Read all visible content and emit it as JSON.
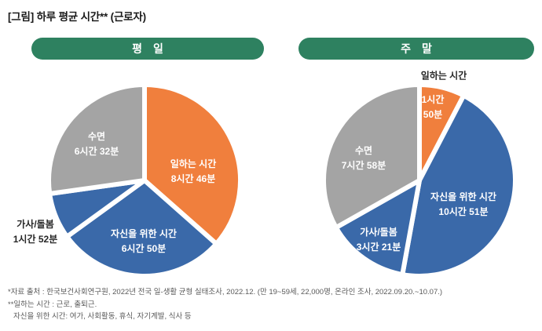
{
  "title": "[그림] 하루 평균 시간** (근로자)",
  "colors": {
    "header_green": "#2E8160",
    "work_orange": "#F07F3D",
    "time_blue": "#3A69A9",
    "sleep_gray": "#A4A4A4",
    "outside_label": "#262626",
    "footnote_gray": "#595959"
  },
  "chart_data": [
    {
      "type": "pie",
      "title": "평 일",
      "categories": [
        "일하는 시간",
        "자신을 위한 시간",
        "가사/돌봄",
        "수면"
      ],
      "keys": [
        "work-time",
        "personal-time",
        "housework-care",
        "sleep"
      ],
      "values_minutes": [
        526,
        410,
        112,
        392
      ],
      "value_labels": [
        "8시간 46분",
        "6시간 50분",
        "1시간 52분",
        "6시간 32분"
      ],
      "slice_colors": [
        "#F07F3D",
        "#3A69A9",
        "#3A69A9",
        "#A4A4A4"
      ],
      "start_angle": "top",
      "direction": "clockwise",
      "legend": "none"
    },
    {
      "type": "pie",
      "title": "주 말",
      "categories": [
        "일하는 시간",
        "자신을 위한 시간",
        "가사/돌봄",
        "수면"
      ],
      "keys": [
        "work-time",
        "personal-time",
        "housework-care",
        "sleep"
      ],
      "values_minutes": [
        110,
        651,
        201,
        478
      ],
      "value_labels": [
        "1시간 50분",
        "10시간 51분",
        "3시간 21분",
        "7시간 58분"
      ],
      "slice_colors": [
        "#F07F3D",
        "#3A69A9",
        "#3A69A9",
        "#A4A4A4"
      ],
      "start_angle": "top",
      "direction": "clockwise",
      "legend": "none"
    }
  ],
  "footnotes": [
    "*자료 출처 : 한국보건사회연구원, 2022년 전국 일-생활 균형 실태조사, 2022.12. (만 19~59세, 22,000명, 온라인 조사, 2022.09.20.~10.07.)",
    "**일하는 시간 : 근로, 출퇴근.",
    "자신을 위한 시간: 여가, 사회활동, 휴식, 자기계발, 식사 등"
  ]
}
